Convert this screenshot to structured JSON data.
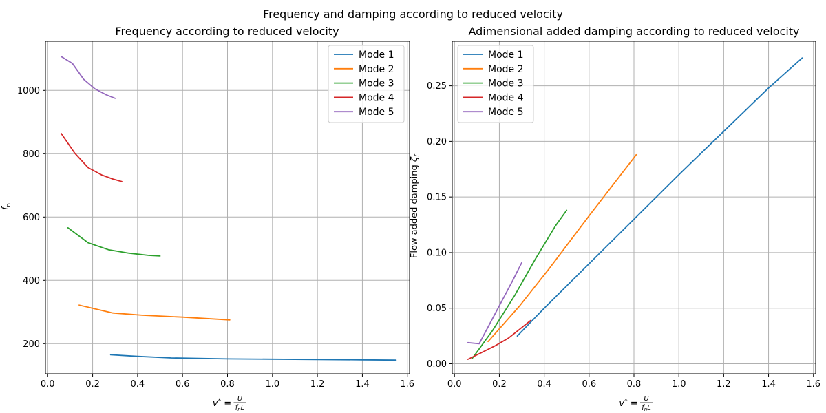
{
  "suptitle": "Frequency and damping according to reduced velocity",
  "colors": [
    "#1f77b4",
    "#ff7f0e",
    "#2ca02c",
    "#d62728",
    "#9467bd"
  ],
  "chart_data": [
    {
      "type": "line",
      "title": "Frequency according to reduced velocity",
      "xlabel": "v* = U / (f_n L)",
      "ylabel": "f_n",
      "xlim": [
        -0.01,
        1.61
      ],
      "ylim": [
        105,
        1155
      ],
      "xticks": [
        "0.0",
        "0.2",
        "0.4",
        "0.6",
        "0.8",
        "1.0",
        "1.2",
        "1.4",
        "1.6"
      ],
      "yticks": [
        "200",
        "400",
        "600",
        "800",
        "1000"
      ],
      "grid": true,
      "legend": "top-right",
      "series": [
        {
          "name": "Mode 1",
          "x": [
            0.28,
            0.4,
            0.55,
            0.8,
            1.0,
            1.2,
            1.4,
            1.55
          ],
          "y": [
            165,
            160,
            155,
            152,
            151,
            150,
            149,
            148
          ]
        },
        {
          "name": "Mode 2",
          "x": [
            0.14,
            0.29,
            0.42,
            0.6,
            0.81
          ],
          "y": [
            322,
            297,
            290,
            284,
            275
          ]
        },
        {
          "name": "Mode 3",
          "x": [
            0.09,
            0.18,
            0.27,
            0.36,
            0.45,
            0.5
          ],
          "y": [
            566,
            519,
            497,
            486,
            479,
            477
          ]
        },
        {
          "name": "Mode 4",
          "x": [
            0.06,
            0.12,
            0.18,
            0.24,
            0.29,
            0.33
          ],
          "y": [
            864,
            802,
            756,
            733,
            720,
            712
          ]
        },
        {
          "name": "Mode 5",
          "x": [
            0.06,
            0.11,
            0.16,
            0.21,
            0.26,
            0.3
          ],
          "y": [
            1107,
            1085,
            1035,
            1005,
            986,
            975
          ]
        }
      ]
    },
    {
      "type": "line",
      "title": "Adimensional added damping according to reduced velocity",
      "xlabel": "v* = U / (f_n L)",
      "ylabel": "Flow added damping ζ_f",
      "xlim": [
        -0.01,
        1.61
      ],
      "ylim": [
        -0.009,
        0.29
      ],
      "xticks": [
        "0.0",
        "0.2",
        "0.4",
        "0.6",
        "0.8",
        "1.0",
        "1.2",
        "1.4",
        "1.6"
      ],
      "yticks": [
        "0.00",
        "0.05",
        "0.10",
        "0.15",
        "0.20",
        "0.25"
      ],
      "grid": true,
      "legend": "top-left",
      "series": [
        {
          "name": "Mode 1",
          "x": [
            0.28,
            0.4,
            0.6,
            0.8,
            1.0,
            1.2,
            1.4,
            1.55
          ],
          "y": [
            0.025,
            0.05,
            0.09,
            0.13,
            0.17,
            0.209,
            0.248,
            0.275
          ]
        },
        {
          "name": "Mode 2",
          "x": [
            0.15,
            0.29,
            0.42,
            0.6,
            0.81
          ],
          "y": [
            0.02,
            0.052,
            0.085,
            0.133,
            0.188
          ]
        },
        {
          "name": "Mode 3",
          "x": [
            0.08,
            0.17,
            0.27,
            0.36,
            0.45,
            0.5
          ],
          "y": [
            0.005,
            0.03,
            0.062,
            0.094,
            0.124,
            0.138
          ]
        },
        {
          "name": "Mode 4",
          "x": [
            0.06,
            0.12,
            0.18,
            0.24,
            0.29,
            0.34
          ],
          "y": [
            0.004,
            0.01,
            0.016,
            0.023,
            0.031,
            0.039
          ]
        },
        {
          "name": "Mode 5",
          "x": [
            0.06,
            0.11,
            0.16,
            0.21,
            0.26,
            0.3
          ],
          "y": [
            0.019,
            0.018,
            0.037,
            0.056,
            0.075,
            0.091
          ]
        }
      ]
    }
  ]
}
